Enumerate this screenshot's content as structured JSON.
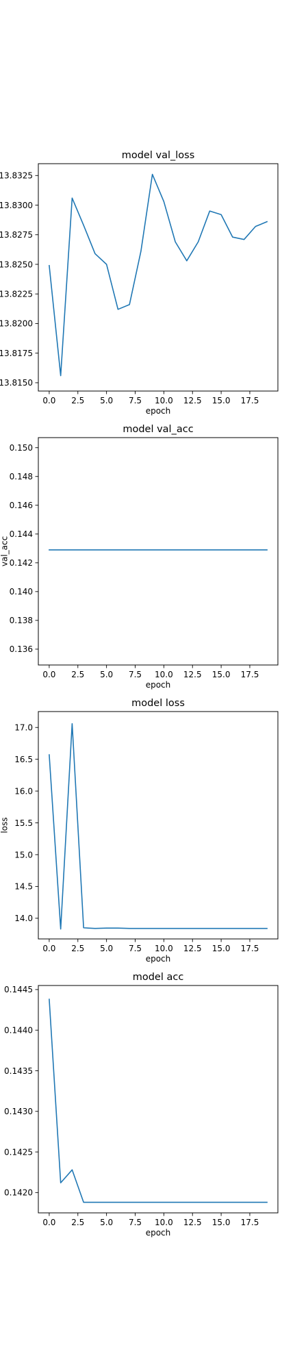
{
  "chart_data": [
    {
      "type": "line",
      "title": "model val_loss",
      "xlabel": "epoch",
      "ylabel": "",
      "xlim": [
        -0.95,
        19.95
      ],
      "ylim": [
        13.8143,
        13.8335
      ],
      "xticks": [
        0.0,
        2.5,
        5.0,
        7.5,
        10.0,
        12.5,
        15.0,
        17.5
      ],
      "xtick_labels": [
        "0.0",
        "2.5",
        "5.0",
        "7.5",
        "10.0",
        "12.5",
        "15.0",
        "17.5"
      ],
      "yticks": [
        13.815,
        13.8175,
        13.82,
        13.8225,
        13.825,
        13.8275,
        13.83,
        13.8325
      ],
      "ytick_labels": [
        "13.8150",
        "13.8175",
        "13.8200",
        "13.8225",
        "13.8250",
        "13.8275",
        "13.8300",
        "13.8325"
      ],
      "color": "#1f77b4",
      "x": [
        0,
        1,
        2,
        3,
        4,
        5,
        6,
        7,
        8,
        9,
        10,
        11,
        12,
        13,
        14,
        15,
        16,
        17,
        18,
        19
      ],
      "values": [
        13.8249,
        13.8156,
        13.8306,
        13.8283,
        13.8259,
        13.825,
        13.8212,
        13.8216,
        13.8261,
        13.8326,
        13.8303,
        13.8269,
        13.8253,
        13.8269,
        13.8295,
        13.8292,
        13.8273,
        13.8271,
        13.8282,
        13.8286
      ]
    },
    {
      "type": "line",
      "title": "model val_acc",
      "xlabel": "epoch",
      "ylabel": "val_acc",
      "xlim": [
        -0.95,
        19.95
      ],
      "ylim": [
        0.1349,
        0.1507
      ],
      "xticks": [
        0.0,
        2.5,
        5.0,
        7.5,
        10.0,
        12.5,
        15.0,
        17.5
      ],
      "xtick_labels": [
        "0.0",
        "2.5",
        "5.0",
        "7.5",
        "10.0",
        "12.5",
        "15.0",
        "17.5"
      ],
      "yticks": [
        0.136,
        0.138,
        0.14,
        0.142,
        0.144,
        0.146,
        0.148,
        0.15
      ],
      "ytick_labels": [
        "0.136",
        "0.138",
        "0.140",
        "0.142",
        "0.144",
        "0.146",
        "0.148",
        "0.150"
      ],
      "color": "#1f77b4",
      "x": [
        0,
        1,
        2,
        3,
        4,
        5,
        6,
        7,
        8,
        9,
        10,
        11,
        12,
        13,
        14,
        15,
        16,
        17,
        18,
        19
      ],
      "values": [
        0.1429,
        0.1429,
        0.1429,
        0.1429,
        0.1429,
        0.1429,
        0.1429,
        0.1429,
        0.1429,
        0.1429,
        0.1429,
        0.1429,
        0.1429,
        0.1429,
        0.1429,
        0.1429,
        0.1429,
        0.1429,
        0.1429,
        0.1429
      ]
    },
    {
      "type": "line",
      "title": "model loss",
      "xlabel": "epoch",
      "ylabel": "loss",
      "xlim": [
        -0.95,
        19.95
      ],
      "ylim": [
        13.675,
        17.25
      ],
      "xticks": [
        0.0,
        2.5,
        5.0,
        7.5,
        10.0,
        12.5,
        15.0,
        17.5
      ],
      "xtick_labels": [
        "0.0",
        "2.5",
        "5.0",
        "7.5",
        "10.0",
        "12.5",
        "15.0",
        "17.5"
      ],
      "yticks": [
        14.0,
        14.5,
        15.0,
        15.5,
        16.0,
        16.5,
        17.0
      ],
      "ytick_labels": [
        "14.0",
        "14.5",
        "15.0",
        "15.5",
        "16.0",
        "16.5",
        "17.0"
      ],
      "color": "#1f77b4",
      "x": [
        0,
        1,
        2,
        3,
        4,
        5,
        6,
        7,
        8,
        9,
        10,
        11,
        12,
        13,
        14,
        15,
        16,
        17,
        18,
        19
      ],
      "values": [
        16.57,
        13.83,
        17.06,
        13.85,
        13.84,
        13.845,
        13.845,
        13.84,
        13.84,
        13.84,
        13.84,
        13.84,
        13.84,
        13.84,
        13.84,
        13.84,
        13.84,
        13.84,
        13.84,
        13.84
      ]
    },
    {
      "type": "line",
      "title": "model acc",
      "xlabel": "epoch",
      "ylabel": "",
      "xlim": [
        -0.95,
        19.95
      ],
      "ylim": [
        0.14175,
        0.14455
      ],
      "xticks": [
        0.0,
        2.5,
        5.0,
        7.5,
        10.0,
        12.5,
        15.0,
        17.5
      ],
      "xtick_labels": [
        "0.0",
        "2.5",
        "5.0",
        "7.5",
        "10.0",
        "12.5",
        "15.0",
        "17.5"
      ],
      "yticks": [
        0.142,
        0.1425,
        0.143,
        0.1435,
        0.144,
        0.1445
      ],
      "ytick_labels": [
        "0.1420",
        "0.1425",
        "0.1430",
        "0.1435",
        "0.1440",
        "0.1445"
      ],
      "color": "#1f77b4",
      "x": [
        0,
        1,
        2,
        3,
        4,
        5,
        6,
        7,
        8,
        9,
        10,
        11,
        12,
        13,
        14,
        15,
        16,
        17,
        18,
        19
      ],
      "values": [
        0.14438,
        0.14212,
        0.14228,
        0.14188,
        0.14188,
        0.14188,
        0.14188,
        0.14188,
        0.14188,
        0.14188,
        0.14188,
        0.14188,
        0.14188,
        0.14188,
        0.14188,
        0.14188,
        0.14188,
        0.14188,
        0.14188,
        0.14188
      ]
    }
  ]
}
